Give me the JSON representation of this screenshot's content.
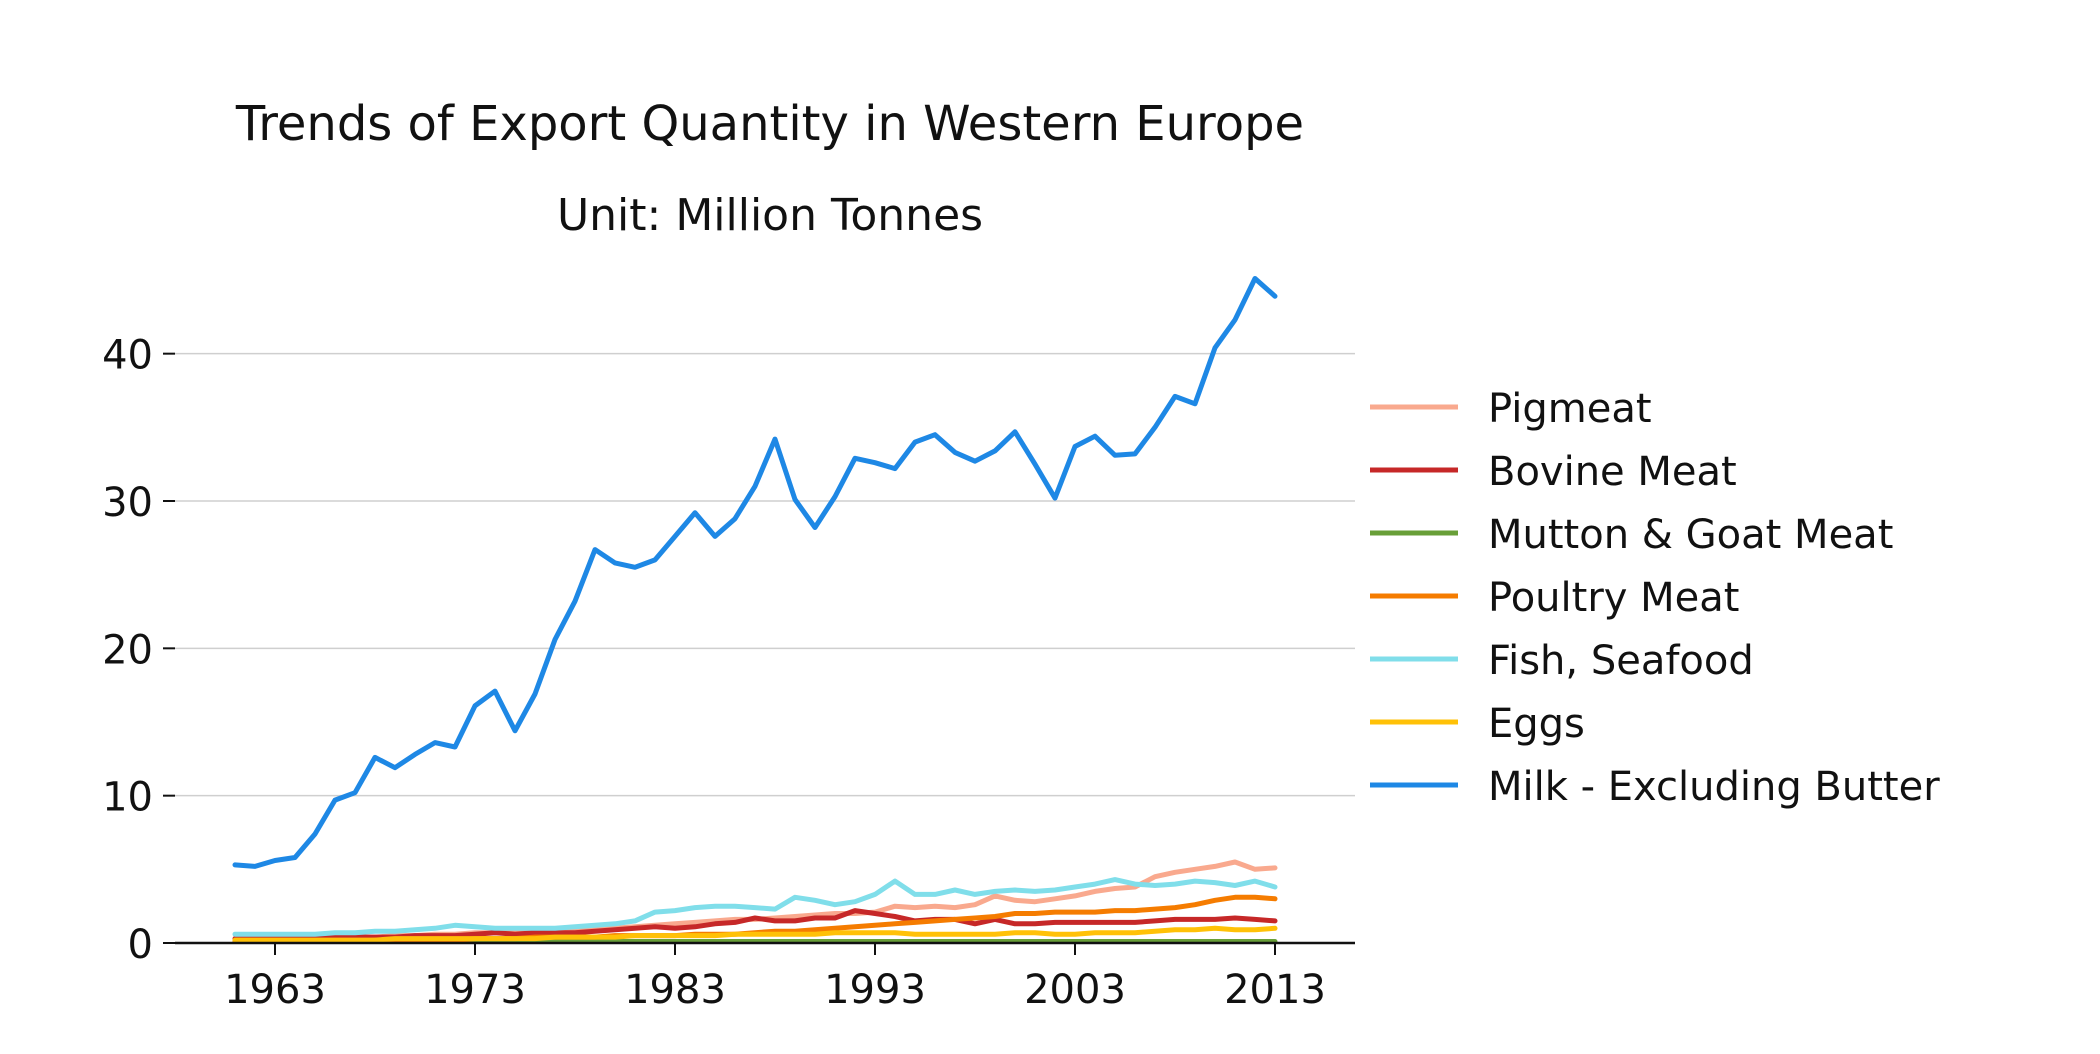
{
  "chart_data": {
    "type": "line",
    "title": "Trends of Export Quantity in Western Europe",
    "subtitle": "Unit: Million Tonnes",
    "xlabel": "",
    "ylabel": "",
    "xlim": [
      1958,
      2017
    ],
    "ylim": [
      0,
      45
    ],
    "xticks": [
      1963,
      1973,
      1983,
      1993,
      2003,
      2013
    ],
    "yticks": [
      0,
      10,
      20,
      30,
      40
    ],
    "grid": "horizontal",
    "legend_position": "right",
    "x": [
      1961,
      1962,
      1963,
      1964,
      1965,
      1966,
      1967,
      1968,
      1969,
      1970,
      1971,
      1972,
      1973,
      1974,
      1975,
      1976,
      1977,
      1978,
      1979,
      1980,
      1981,
      1982,
      1983,
      1984,
      1985,
      1986,
      1987,
      1988,
      1989,
      1990,
      1991,
      1992,
      1993,
      1994,
      1995,
      1996,
      1997,
      1998,
      1999,
      2000,
      2001,
      2002,
      2003,
      2004,
      2005,
      2006,
      2007,
      2008,
      2009,
      2010,
      2011,
      2012,
      2013
    ],
    "series": [
      {
        "name": "Pigmeat",
        "color": "#f9a98e",
        "values": [
          0.2,
          0.2,
          0.2,
          0.3,
          0.3,
          0.3,
          0.4,
          0.4,
          0.5,
          0.5,
          0.6,
          0.6,
          0.7,
          0.7,
          0.7,
          0.8,
          0.8,
          0.9,
          0.9,
          1.0,
          1.1,
          1.2,
          1.3,
          1.4,
          1.5,
          1.6,
          1.6,
          1.7,
          1.8,
          1.9,
          2.0,
          2.0,
          2.1,
          2.5,
          2.4,
          2.5,
          2.4,
          2.6,
          3.2,
          2.9,
          2.8,
          3.0,
          3.2,
          3.5,
          3.7,
          3.8,
          4.5,
          4.8,
          5.0,
          5.2,
          5.5,
          5.0,
          5.1
        ]
      },
      {
        "name": "Bovine Meat",
        "color": "#c62828",
        "values": [
          0.3,
          0.3,
          0.3,
          0.3,
          0.3,
          0.4,
          0.4,
          0.4,
          0.4,
          0.5,
          0.5,
          0.5,
          0.6,
          0.7,
          0.6,
          0.7,
          0.7,
          0.7,
          0.8,
          0.9,
          1.0,
          1.1,
          1.0,
          1.1,
          1.3,
          1.4,
          1.7,
          1.5,
          1.5,
          1.7,
          1.7,
          2.2,
          2.0,
          1.8,
          1.5,
          1.6,
          1.6,
          1.3,
          1.6,
          1.3,
          1.3,
          1.4,
          1.4,
          1.4,
          1.4,
          1.4,
          1.5,
          1.6,
          1.6,
          1.6,
          1.7,
          1.6,
          1.5
        ]
      },
      {
        "name": "Mutton & Goat Meat",
        "color": "#689f38",
        "values": [
          0.1,
          0.1,
          0.1,
          0.1,
          0.1,
          0.1,
          0.1,
          0.1,
          0.1,
          0.1,
          0.1,
          0.1,
          0.1,
          0.1,
          0.1,
          0.1,
          0.1,
          0.1,
          0.1,
          0.1,
          0.1,
          0.1,
          0.1,
          0.1,
          0.1,
          0.1,
          0.1,
          0.1,
          0.1,
          0.1,
          0.1,
          0.1,
          0.1,
          0.1,
          0.1,
          0.1,
          0.1,
          0.1,
          0.1,
          0.1,
          0.1,
          0.1,
          0.1,
          0.1,
          0.1,
          0.1,
          0.1,
          0.1,
          0.1,
          0.1,
          0.1,
          0.1,
          0.1
        ]
      },
      {
        "name": "Poultry Meat",
        "color": "#f57c00",
        "values": [
          0.1,
          0.1,
          0.1,
          0.1,
          0.1,
          0.1,
          0.1,
          0.2,
          0.2,
          0.2,
          0.2,
          0.2,
          0.3,
          0.3,
          0.3,
          0.4,
          0.4,
          0.4,
          0.4,
          0.5,
          0.5,
          0.5,
          0.5,
          0.6,
          0.6,
          0.6,
          0.7,
          0.8,
          0.8,
          0.9,
          1.0,
          1.1,
          1.2,
          1.3,
          1.4,
          1.5,
          1.6,
          1.7,
          1.8,
          2.0,
          2.0,
          2.1,
          2.1,
          2.1,
          2.2,
          2.2,
          2.3,
          2.4,
          2.6,
          2.9,
          3.1,
          3.1,
          3.0
        ]
      },
      {
        "name": "Fish, Seafood",
        "color": "#80deea",
        "values": [
          0.6,
          0.6,
          0.6,
          0.6,
          0.6,
          0.7,
          0.7,
          0.8,
          0.8,
          0.9,
          1.0,
          1.2,
          1.1,
          1.0,
          1.0,
          1.0,
          1.0,
          1.1,
          1.2,
          1.3,
          1.5,
          2.1,
          2.2,
          2.4,
          2.5,
          2.5,
          2.4,
          2.3,
          3.1,
          2.9,
          2.6,
          2.8,
          3.3,
          4.2,
          3.3,
          3.3,
          3.6,
          3.3,
          3.5,
          3.6,
          3.5,
          3.6,
          3.8,
          4.0,
          4.3,
          4.0,
          3.9,
          4.0,
          4.2,
          4.1,
          3.9,
          4.2,
          3.8
        ]
      },
      {
        "name": "Eggs",
        "color": "#ffc107",
        "values": [
          0.2,
          0.2,
          0.2,
          0.2,
          0.2,
          0.2,
          0.2,
          0.2,
          0.3,
          0.3,
          0.3,
          0.3,
          0.3,
          0.3,
          0.3,
          0.3,
          0.4,
          0.4,
          0.4,
          0.4,
          0.5,
          0.5,
          0.5,
          0.5,
          0.5,
          0.6,
          0.6,
          0.6,
          0.6,
          0.6,
          0.7,
          0.7,
          0.7,
          0.7,
          0.6,
          0.6,
          0.6,
          0.6,
          0.6,
          0.7,
          0.7,
          0.6,
          0.6,
          0.7,
          0.7,
          0.7,
          0.8,
          0.9,
          0.9,
          1.0,
          0.9,
          0.9,
          1.0
        ]
      },
      {
        "name": "Milk - Excluding Butter",
        "color": "#1e88e5",
        "values": [
          5.3,
          5.2,
          5.6,
          5.8,
          7.4,
          9.7,
          10.2,
          12.6,
          11.9,
          12.8,
          13.6,
          13.3,
          16.1,
          17.1,
          14.4,
          16.9,
          20.6,
          23.2,
          26.7,
          25.8,
          25.5,
          26.0,
          27.6,
          29.2,
          27.6,
          28.8,
          31.0,
          34.2,
          30.1,
          28.2,
          30.3,
          32.9,
          32.6,
          32.2,
          34.0,
          34.5,
          33.3,
          32.7,
          33.4,
          34.7,
          32.5,
          30.2,
          33.7,
          34.4,
          33.1,
          33.2,
          35.0,
          37.1,
          36.6,
          40.4,
          42.3,
          45.1,
          43.9
        ]
      }
    ]
  }
}
